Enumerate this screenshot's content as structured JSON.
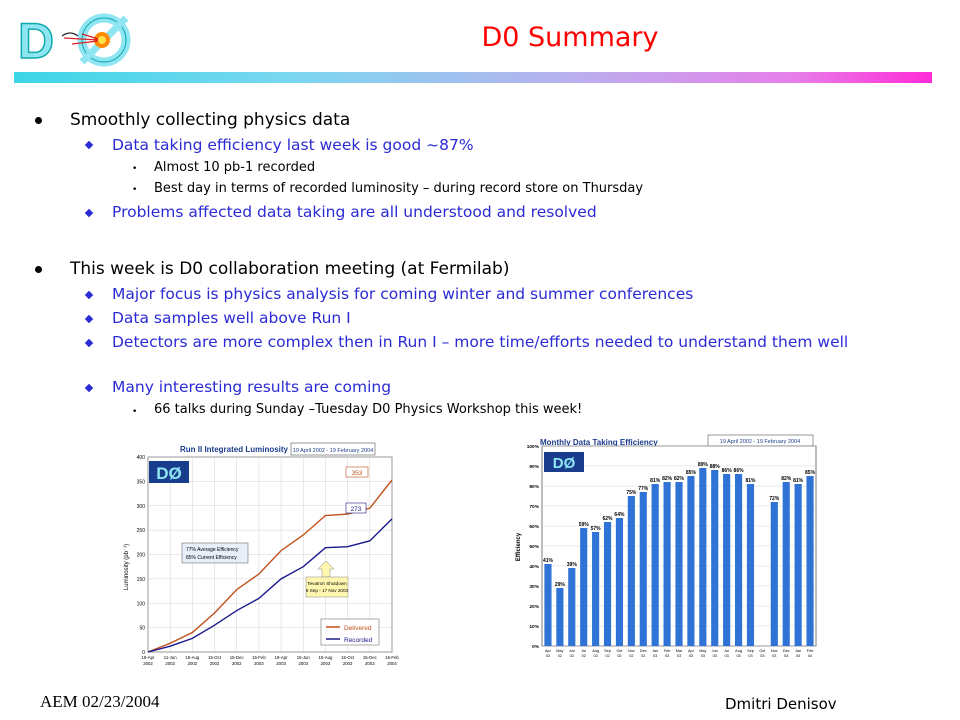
{
  "logo": {
    "text": "DØ"
  },
  "slide": {
    "title": "D0 Summary"
  },
  "bullets": {
    "b1": "Smoothly collecting physics data",
    "b1_1": "Data taking efficiency last week is good ~87%",
    "b1_1_1": "Almost 10 pb-1 recorded",
    "b1_1_2": "Best day in terms of recorded luminosity – during record store on Thursday",
    "b1_2": "Problems affected data taking are all understood and resolved",
    "b2": "This week is D0 collaboration meeting (at Fermilab)",
    "b2_1": "Major focus is physics analysis for coming winter and summer conferences",
    "b2_2": "Data samples well above Run I",
    "b2_3": "Detectors are more complex then in Run I – more time/efforts needed to understand them well",
    "b2_4": "Many interesting results are coming",
    "b2_4_1": "66 talks during Sunday –Tuesday D0 Physics Workshop this week!"
  },
  "footer": {
    "left": "AEM 02/23/2004",
    "right": "Dmitri Denisov"
  },
  "colors": {
    "title": "#ff0000",
    "level2": "#2b2bd6",
    "delivered": "#c0501a",
    "recorded": "#1a1a8c",
    "bar": "#2f73d6"
  },
  "chart_data": [
    {
      "type": "line",
      "title": "Run II Integrated Luminosity",
      "date_range": "19 April 2002 - 19 February 2004",
      "ylabel": "Luminosity (pb⁻¹)",
      "ylim": [
        0,
        400
      ],
      "yticks": [
        "0",
        "50",
        "100",
        "150",
        "200",
        "250",
        "300",
        "350",
        "400"
      ],
      "xticks": [
        "19-Apr 2002",
        "11-Jun 2002",
        "15-Aug 2002",
        "15-Oct 2002",
        "15-Dec 2002",
        "15-Feb 2003",
        "19-Apr 2003",
        "15-Jun 2003",
        "15-Aug 2003",
        "15-Oct 2003",
        "15-Dec 2003",
        "15-Feb 2004"
      ],
      "x": [
        0,
        1,
        2,
        3,
        4,
        5,
        6,
        7,
        8,
        9,
        10,
        11
      ],
      "series": [
        {
          "name": "Delivered",
          "values": [
            0,
            18,
            40,
            80,
            128,
            160,
            208,
            240,
            280,
            283,
            295,
            353
          ],
          "end_label": "353"
        },
        {
          "name": "Recorded",
          "values": [
            0,
            12,
            28,
            55,
            85,
            110,
            150,
            175,
            214,
            216,
            228,
            273
          ],
          "end_label": "273"
        }
      ],
      "annotations": [
        "77% Average Efficiency",
        "85% Current Efficiency",
        "Tevatron Shutdown",
        "8 Sep - 17 Nov 2003"
      ],
      "legend": "bottom-right"
    },
    {
      "type": "bar",
      "title": "Monthly Data Taking Efficiency",
      "date_range": "19 April 2002 - 19 February 2004",
      "ylabel": "Efficiency",
      "ylim": [
        0,
        100
      ],
      "yticks": [
        "0%",
        "10%",
        "20%",
        "30%",
        "40%",
        "50%",
        "60%",
        "70%",
        "80%",
        "90%",
        "100%"
      ],
      "categories": [
        "Apr 02",
        "May 02",
        "Jun 02",
        "Jul 02",
        "Aug 02",
        "Sep 02",
        "Oct 02",
        "Nov 02",
        "Dec 02",
        "Jan 03",
        "Feb 03",
        "Mar 03",
        "Apr 03",
        "May 03",
        "Jun 03",
        "Jul 03",
        "Aug 03",
        "Sep 03",
        "Oct 03",
        "Nov 03",
        "Dec 03",
        "Jan 04",
        "Feb 04"
      ],
      "values": [
        41,
        29,
        39,
        59,
        57,
        62,
        64,
        75,
        77,
        81,
        82,
        82,
        85,
        89,
        88,
        86,
        86,
        81,
        null,
        72,
        82,
        81,
        85
      ],
      "labels": [
        "41%",
        "29%",
        "39%",
        "59%",
        "57%",
        "62%",
        "64%",
        "75%",
        "77%",
        "81%",
        "82%",
        "82%",
        "85%",
        "89%",
        "88%",
        "86%",
        "86%",
        "81%",
        "",
        "72%",
        "82%",
        "81%",
        "85%"
      ]
    }
  ]
}
